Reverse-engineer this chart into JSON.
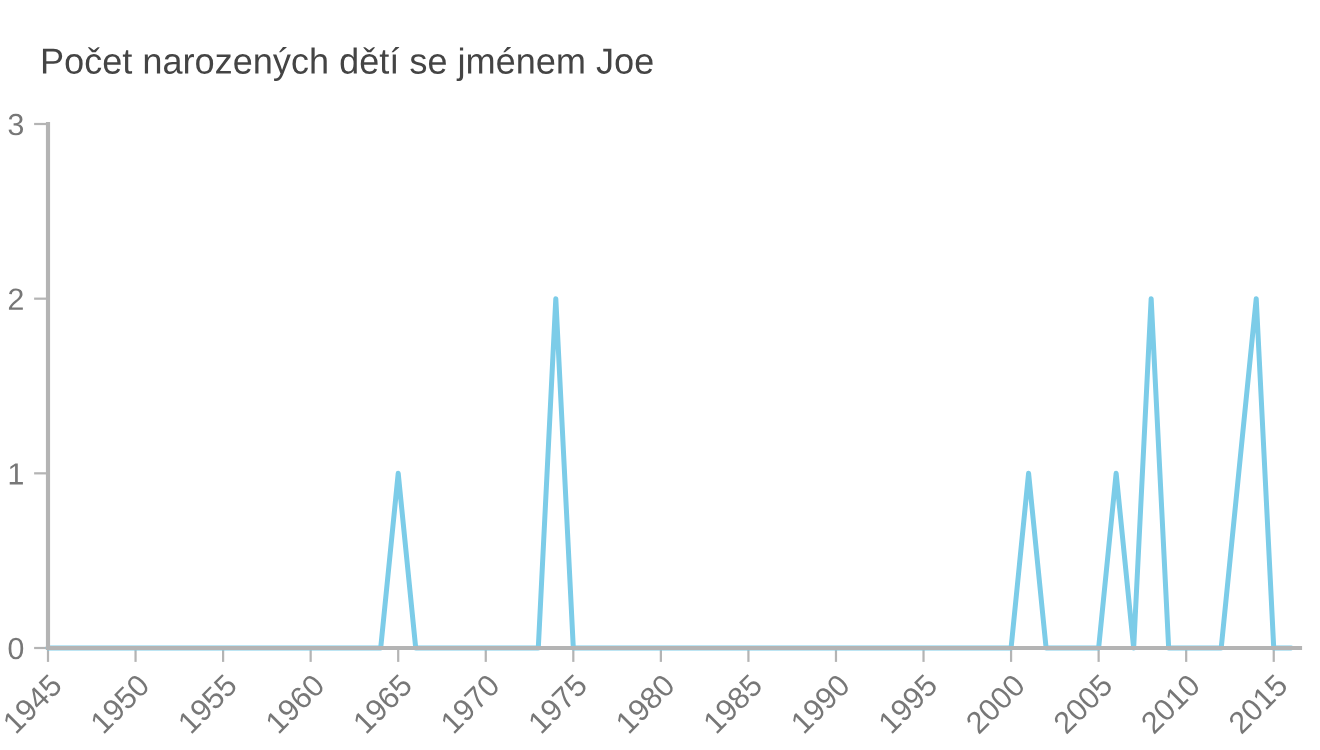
{
  "chart_data": {
    "type": "line",
    "title": "Počet narozených dětí se jménem Joe",
    "x": [
      1945,
      1946,
      1947,
      1948,
      1949,
      1950,
      1951,
      1952,
      1953,
      1954,
      1955,
      1956,
      1957,
      1958,
      1959,
      1960,
      1961,
      1962,
      1963,
      1964,
      1965,
      1966,
      1967,
      1968,
      1969,
      1970,
      1971,
      1972,
      1973,
      1974,
      1975,
      1976,
      1977,
      1978,
      1979,
      1980,
      1981,
      1982,
      1983,
      1984,
      1985,
      1986,
      1987,
      1988,
      1989,
      1990,
      1991,
      1992,
      1993,
      1994,
      1995,
      1996,
      1997,
      1998,
      1999,
      2000,
      2001,
      2002,
      2003,
      2004,
      2005,
      2006,
      2007,
      2008,
      2009,
      2010,
      2011,
      2012,
      2013,
      2014,
      2015,
      2016
    ],
    "series": [
      {
        "color": "#7ccce8",
        "values": [
          0,
          0,
          0,
          0,
          0,
          0,
          0,
          0,
          0,
          0,
          0,
          0,
          0,
          0,
          0,
          0,
          0,
          0,
          0,
          0,
          1,
          0,
          0,
          0,
          0,
          0,
          0,
          0,
          0,
          2,
          0,
          0,
          0,
          0,
          0,
          0,
          0,
          0,
          0,
          0,
          0,
          0,
          0,
          0,
          0,
          0,
          0,
          0,
          0,
          0,
          0,
          0,
          0,
          0,
          0,
          0,
          1,
          0,
          0,
          0,
          0,
          1,
          0,
          2,
          0,
          0,
          0,
          0,
          1,
          2,
          0,
          0
        ]
      }
    ],
    "xlim": [
      1945,
      2016.5
    ],
    "xticks": [
      1945,
      1950,
      1955,
      1960,
      1965,
      1970,
      1975,
      1980,
      1985,
      1990,
      1995,
      2000,
      2005,
      2010,
      2015
    ],
    "ylim": [
      0,
      3
    ],
    "yticks": [
      0,
      1,
      2,
      3
    ],
    "grid": false,
    "legend": false,
    "marker": "none",
    "line_style": "solid"
  }
}
